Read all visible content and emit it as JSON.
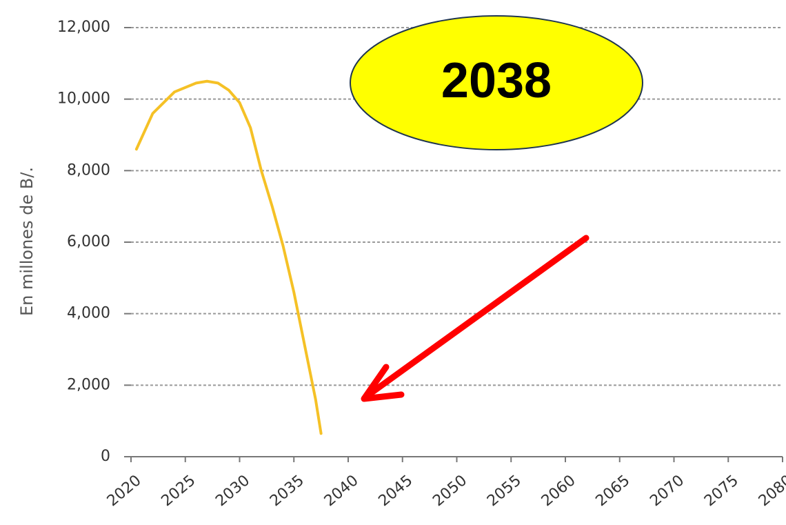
{
  "chart_data": {
    "type": "line",
    "y_label": "En millones de B/.",
    "annotation": "2038",
    "x": [
      2020.5,
      2022,
      2024,
      2026,
      2027,
      2028,
      2029,
      2030,
      2031,
      2032,
      2033,
      2034,
      2035,
      2036,
      2037,
      2037.5
    ],
    "series": [
      {
        "color": "#f5c126",
        "values": [
          8600,
          9600,
          10200,
          10450,
          10500,
          10450,
          10250,
          9900,
          9200,
          8000,
          7000,
          5900,
          4600,
          3100,
          1600,
          650
        ]
      }
    ],
    "xlim": [
      2020,
      2080
    ],
    "xticks": [
      2020,
      2025,
      2030,
      2035,
      2040,
      2045,
      2050,
      2055,
      2060,
      2065,
      2070,
      2075,
      2080
    ],
    "ylim": [
      0,
      12000
    ],
    "yticks": [
      0,
      {
        "value": 2000,
        "label": "2,000"
      },
      {
        "value": 4000,
        "label": "4,000"
      },
      {
        "value": 6000,
        "label": "6,000"
      },
      {
        "value": 8000,
        "label": "8,000"
      },
      {
        "value": 10000,
        "label": "10,000"
      },
      {
        "value": 12000,
        "label": "12,000"
      }
    ],
    "grid": true
  }
}
